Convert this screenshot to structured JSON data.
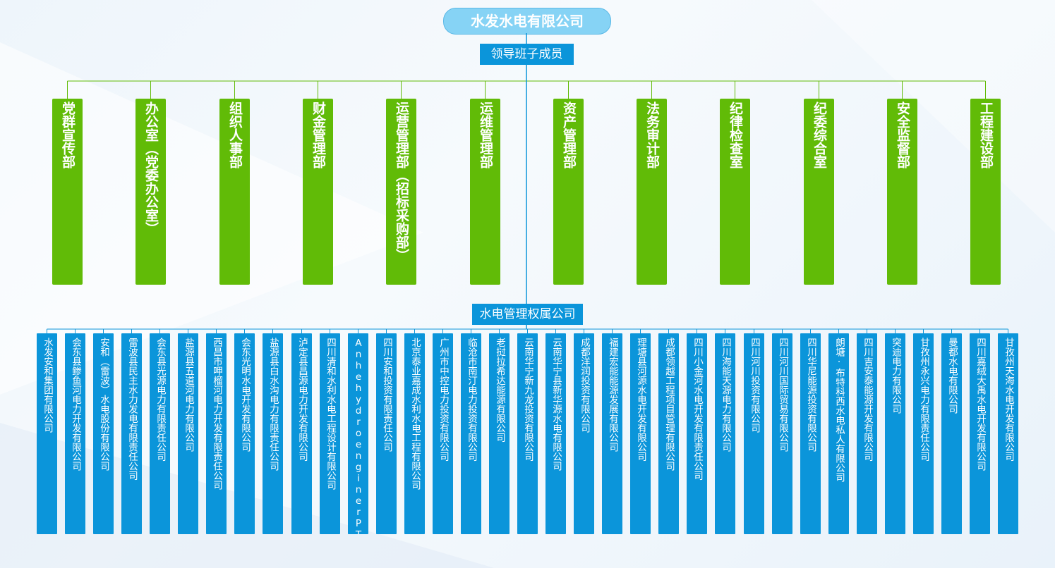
{
  "title": "水发水电有限公司",
  "leadership": "领导班子成员",
  "departments": [
    "党群宣传部",
    "办公室（党委办公室）",
    "组织人事部",
    "财金管理部",
    "运营管理部（招标采购部）",
    "运维管理部",
    "资产管理部",
    "法务审计部",
    "纪律检查室",
    "纪委综合室",
    "安全监督部",
    "工程建设部"
  ],
  "subsidiary_header": "水电管理权属公司",
  "companies": [
    "水发安和集团有限公司",
    "会东县鲹鱼河电力开发有限公司",
    "安和（雷波）水电股份有限公司",
    "雷波县民主水力发电有限责任公司",
    "会东县光源电力有限责任公司",
    "盐源县五道河电力有限公司",
    "西昌市呷榴河电力开发有限责任公司",
    "会东光明水电开发有限公司",
    "盐源县白水沟电力有限责任公司",
    "泸定县昌源电力开发有限公司",
    "四川清和水利水电工程设计有限公司",
    "AnhehydroenginerPT",
    "四川安和投资有限责任公司",
    "北京泰业嘉成水利水电工程有限公司",
    "广州市中控电力投资有限公司",
    "临沧市南汀电力投资有限公司",
    "老挝拉希达能源有限公司",
    "云南华宁新九龙投资有限公司",
    "云南华宁县新华源水电有限公司",
    "成都洋润投资有限公司",
    "福建宏能能源发展有限公司",
    "理塘县河源水电开发有限公司",
    "成都领越工程项目管理有限公司",
    "四川小金河水电开发有限责任公司",
    "四川海能天源电力有限公司",
    "四川河川投资有限公司",
    "四川河川国际贸易有限公司",
    "四川华尼能源投资有限公司",
    "朗塘·布特科西水电私人有限公司",
    "四川吉安泰能源开发有限公司",
    "突迪电力有限公司",
    "甘孜州永兴电力有限责任公司",
    "曼都水电有限公司",
    "四川嘉绒大禹水电开发有限公司",
    "甘孜州天海水电开发有限公司"
  ],
  "colors": {
    "title_bg": "#86d3f5",
    "header_bg": "#0b95da",
    "dept_bg": "#61bb07",
    "line_dept": "#61bb07",
    "line_company": "#0b95da"
  }
}
